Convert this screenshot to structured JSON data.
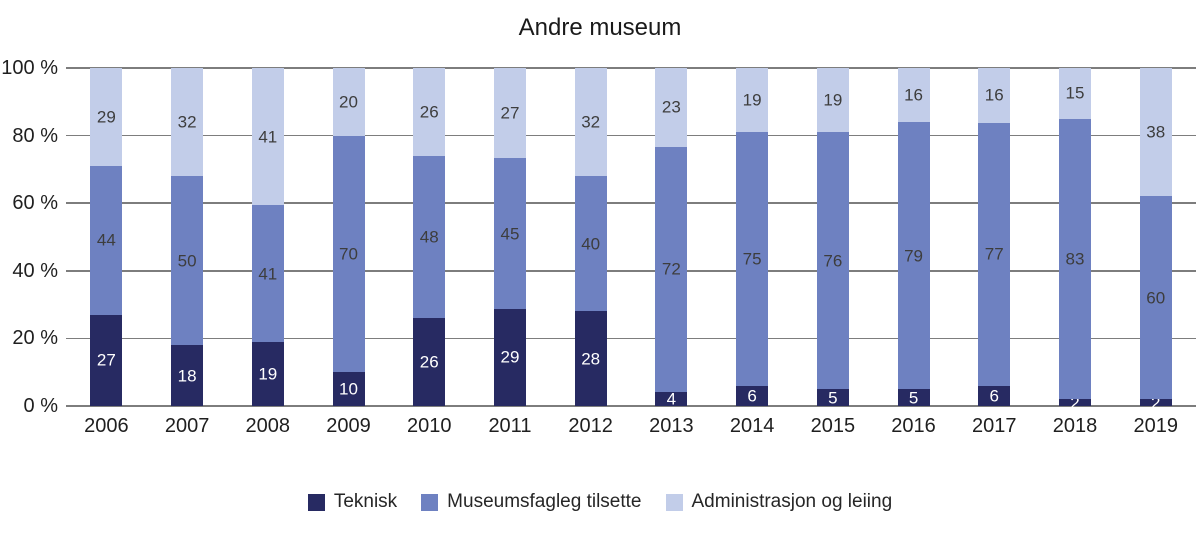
{
  "chart_data": {
    "type": "bar",
    "variant": "stacked-100",
    "title": "Andre museum",
    "categories": [
      "2006",
      "2007",
      "2008",
      "2009",
      "2010",
      "2011",
      "2012",
      "2013",
      "2014",
      "2015",
      "2016",
      "2017",
      "2018",
      "2019"
    ],
    "series": [
      {
        "name": "Teknisk",
        "color": "#272a62",
        "label_color": "#ffffff",
        "values": [
          27,
          18,
          19,
          10,
          26,
          29,
          28,
          4,
          6,
          5,
          5,
          6,
          2,
          2
        ]
      },
      {
        "name": "Museumsfagleg tilsette",
        "color": "#6e81c1",
        "label_color": "#3d3d3d",
        "values": [
          44,
          50,
          41,
          70,
          48,
          45,
          40,
          72,
          75,
          76,
          79,
          77,
          83,
          60
        ]
      },
      {
        "name": "Administrasjon og leiing",
        "color": "#c2cde9",
        "label_color": "#3d3d3d",
        "values": [
          29,
          32,
          41,
          20,
          26,
          27,
          32,
          23,
          19,
          19,
          16,
          16,
          15,
          38
        ]
      }
    ],
    "y_ticks": [
      {
        "value": 0,
        "label": "0 %"
      },
      {
        "value": 20,
        "label": "20 %"
      },
      {
        "value": 40,
        "label": "40 %"
      },
      {
        "value": 60,
        "label": "60 %"
      },
      {
        "value": 80,
        "label": "80 %"
      },
      {
        "value": 100,
        "label": "100 %"
      }
    ],
    "ylim": [
      0,
      100
    ],
    "grid": true,
    "gridline_color": "#7d7d7d",
    "legend_position": "bottom"
  }
}
